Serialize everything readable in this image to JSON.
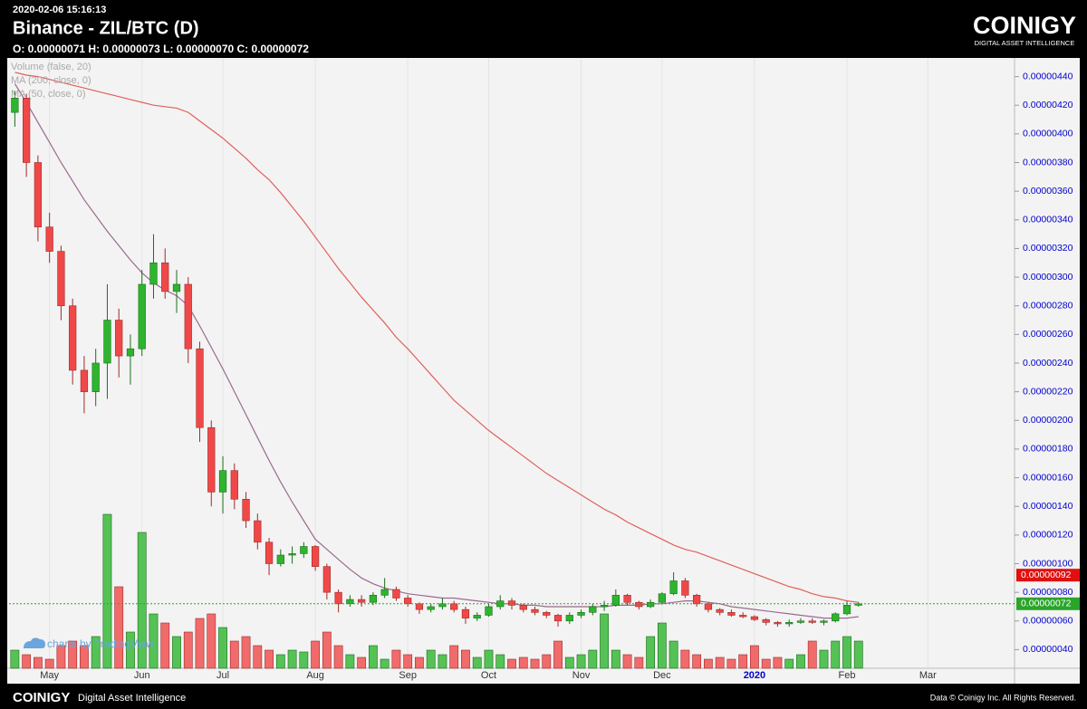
{
  "chart_data": {
    "type": "candlestick",
    "timestamp": "2020-02-06 15:16:13",
    "title": "Binance - ZIL/BTC (D)",
    "ohlc_text": "O: 0.00000071 H: 0.00000073 L: 0.00000070 C: 0.00000072",
    "watermark": "charts by TradingView",
    "up_color": "#2db52d",
    "down_color": "#f04848",
    "categories": [
      null,
      null,
      null,
      "May",
      null,
      null,
      null,
      null,
      null,
      null,
      null,
      "Jun",
      null,
      null,
      null,
      null,
      null,
      null,
      "Jul",
      null,
      null,
      null,
      null,
      null,
      null,
      null,
      "Aug",
      null,
      null,
      null,
      null,
      null,
      null,
      null,
      "Sep",
      null,
      null,
      null,
      null,
      null,
      null,
      "Oct",
      null,
      null,
      null,
      null,
      null,
      null,
      null,
      "Nov",
      null,
      null,
      null,
      null,
      null,
      null,
      "Dec",
      null,
      null,
      null,
      null,
      null,
      null,
      null,
      "2020",
      null,
      null,
      null,
      null,
      null,
      null,
      null,
      "Feb",
      null,
      null,
      null,
      null,
      null,
      null,
      "Mar",
      null,
      null,
      null,
      null,
      null,
      null,
      null
    ],
    "open": [
      4.15e-06,
      4.25e-06,
      3.8e-06,
      3.35e-06,
      3.18e-06,
      2.8e-06,
      2.35e-06,
      2.2e-06,
      2.4e-06,
      2.7e-06,
      2.45e-06,
      2.5e-06,
      2.95e-06,
      3.1e-06,
      2.9e-06,
      2.95e-06,
      2.5e-06,
      1.95e-06,
      1.5e-06,
      1.65e-06,
      1.45e-06,
      1.3e-06,
      1.15e-06,
      1e-06,
      1.06e-06,
      1.07e-06,
      1.12e-06,
      9.8e-07,
      8e-07,
      7.2e-07,
      7.5e-07,
      7.3e-07,
      7.8e-07,
      8.2e-07,
      7.6e-07,
      7.2e-07,
      6.8e-07,
      7e-07,
      7.2e-07,
      6.8e-07,
      6.2e-07,
      6.4e-07,
      7e-07,
      7.4e-07,
      7.1e-07,
      6.8e-07,
      6.6e-07,
      6.4e-07,
      6e-07,
      6.4e-07,
      6.6e-07,
      7e-07,
      7.1e-07,
      7.8e-07,
      7.3e-07,
      7e-07,
      7.3e-07,
      7.9e-07,
      8.8e-07,
      7.8e-07,
      7.2e-07,
      6.8e-07,
      6.6e-07,
      6.4e-07,
      6.3e-07,
      6.1e-07,
      5.9e-07,
      5.8e-07,
      5.9e-07,
      6e-07,
      5.9e-07,
      6e-07,
      6.5e-07,
      7.1e-07,
      null,
      null,
      null,
      null,
      null,
      null,
      null,
      null,
      null,
      null,
      null,
      null,
      null
    ],
    "high": [
      4.3e-06,
      4.28e-06,
      3.85e-06,
      3.45e-06,
      3.22e-06,
      2.85e-06,
      2.45e-06,
      2.5e-06,
      2.95e-06,
      2.78e-06,
      2.6e-06,
      3.05e-06,
      3.3e-06,
      3.2e-06,
      3.05e-06,
      3e-06,
      2.55e-06,
      2e-06,
      1.75e-06,
      1.7e-06,
      1.5e-06,
      1.35e-06,
      1.18e-06,
      1.1e-06,
      1.12e-06,
      1.15e-06,
      1.13e-06,
      1e-06,
      8.2e-07,
      7.8e-07,
      7.8e-07,
      8e-07,
      9e-07,
      8.4e-07,
      7.8e-07,
      7.3e-07,
      7.2e-07,
      7.6e-07,
      7.4e-07,
      7e-07,
      6.6e-07,
      7.2e-07,
      7.8e-07,
      7.6e-07,
      7.2e-07,
      7e-07,
      6.7e-07,
      6.5e-07,
      6.6e-07,
      6.8e-07,
      7.2e-07,
      7.4e-07,
      8.2e-07,
      7.9e-07,
      7.4e-07,
      7.5e-07,
      8e-07,
      9.4e-07,
      9e-07,
      7.9e-07,
      7.3e-07,
      6.9e-07,
      6.8e-07,
      6.6e-07,
      6.4e-07,
      6.2e-07,
      6e-07,
      6.1e-07,
      6.2e-07,
      6.2e-07,
      6.1e-07,
      6.6e-07,
      7.4e-07,
      7.3e-07,
      null,
      null,
      null,
      null,
      null,
      null,
      null,
      null,
      null,
      null,
      null,
      null,
      null
    ],
    "low": [
      4.05e-06,
      3.7e-06,
      3.25e-06,
      3.1e-06,
      2.7e-06,
      2.25e-06,
      2.05e-06,
      2.1e-06,
      2.15e-06,
      2.3e-06,
      2.25e-06,
      2.45e-06,
      2.85e-06,
      2.85e-06,
      2.75e-06,
      2.4e-06,
      1.85e-06,
      1.4e-06,
      1.35e-06,
      1.38e-06,
      1.25e-06,
      1.1e-06,
      9.2e-07,
      9.8e-07,
      1e-06,
      1.04e-06,
      9.5e-07,
      7.5e-07,
      6.6e-07,
      7e-07,
      7e-07,
      7.1e-07,
      7.6e-07,
      7.4e-07,
      7e-07,
      6.5e-07,
      6.6e-07,
      6.8e-07,
      6.6e-07,
      5.8e-07,
      6e-07,
      6.3e-07,
      6.8e-07,
      6.8e-07,
      6.6e-07,
      6.4e-07,
      6.2e-07,
      5.6e-07,
      5.8e-07,
      6.2e-07,
      6.4e-07,
      6.7e-07,
      7e-07,
      7.1e-07,
      6.8e-07,
      6.9e-07,
      7.2e-07,
      7.8e-07,
      7.6e-07,
      7e-07,
      6.6e-07,
      6.4e-07,
      6.3e-07,
      6.2e-07,
      6e-07,
      5.7e-07,
      5.6e-07,
      5.6e-07,
      5.8e-07,
      5.8e-07,
      5.7e-07,
      5.9e-07,
      6.4e-07,
      7e-07,
      null,
      null,
      null,
      null,
      null,
      null,
      null,
      null,
      null,
      null,
      null,
      null,
      null
    ],
    "close": [
      4.25e-06,
      3.8e-06,
      3.35e-06,
      3.18e-06,
      2.8e-06,
      2.35e-06,
      2.2e-06,
      2.4e-06,
      2.7e-06,
      2.45e-06,
      2.5e-06,
      2.95e-06,
      3.1e-06,
      2.9e-06,
      2.95e-06,
      2.5e-06,
      1.95e-06,
      1.5e-06,
      1.65e-06,
      1.45e-06,
      1.3e-06,
      1.15e-06,
      1e-06,
      1.06e-06,
      1.07e-06,
      1.12e-06,
      9.8e-07,
      8e-07,
      7.2e-07,
      7.5e-07,
      7.3e-07,
      7.8e-07,
      8.2e-07,
      7.6e-07,
      7.2e-07,
      6.8e-07,
      7e-07,
      7.2e-07,
      6.8e-07,
      6.2e-07,
      6.4e-07,
      7e-07,
      7.4e-07,
      7.1e-07,
      6.8e-07,
      6.6e-07,
      6.4e-07,
      6e-07,
      6.4e-07,
      6.6e-07,
      7e-07,
      7.1e-07,
      7.8e-07,
      7.3e-07,
      7e-07,
      7.3e-07,
      7.9e-07,
      8.8e-07,
      7.8e-07,
      7.2e-07,
      6.8e-07,
      6.6e-07,
      6.4e-07,
      6.3e-07,
      6.1e-07,
      5.9e-07,
      5.8e-07,
      5.9e-07,
      6e-07,
      5.9e-07,
      6e-07,
      6.5e-07,
      7.1e-07,
      7.2e-07,
      null,
      null,
      null,
      null,
      null,
      null,
      null,
      null,
      null,
      null,
      null,
      null,
      null
    ],
    "indicators": [
      {
        "name": "Volume (false, 20)",
        "values": [
          20,
          15,
          12,
          10,
          25,
          30,
          25,
          35,
          170,
          90,
          40,
          150,
          60,
          50,
          35,
          40,
          55,
          60,
          45,
          30,
          35,
          25,
          20,
          15,
          20,
          18,
          30,
          40,
          25,
          15,
          12,
          25,
          10,
          20,
          15,
          12,
          20,
          15,
          25,
          20,
          12,
          20,
          15,
          10,
          12,
          10,
          15,
          30,
          12,
          15,
          20,
          60,
          20,
          15,
          12,
          35,
          50,
          30,
          20,
          15,
          10,
          12,
          10,
          15,
          25,
          10,
          12,
          10,
          15,
          30,
          20,
          30,
          35,
          30,
          null,
          null,
          null,
          null,
          null,
          null,
          null,
          null,
          null,
          null,
          null,
          null,
          null
        ]
      },
      {
        "name": "MA (200, close, 0)",
        "color": "#e0605a",
        "values": [
          4.43e-06,
          4.41e-06,
          4.4e-06,
          4.38e-06,
          4.36e-06,
          4.34e-06,
          4.32e-06,
          4.3e-06,
          4.28e-06,
          4.26e-06,
          4.24e-06,
          4.22e-06,
          4.2e-06,
          4.19e-06,
          4.18e-06,
          4.15e-06,
          4.09e-06,
          4.03e-06,
          3.97e-06,
          3.9e-06,
          3.83e-06,
          3.75e-06,
          3.68e-06,
          3.59e-06,
          3.49e-06,
          3.39e-06,
          3.28e-06,
          3.17e-06,
          3.06e-06,
          2.96e-06,
          2.86e-06,
          2.77e-06,
          2.68e-06,
          2.58e-06,
          2.5e-06,
          2.41e-06,
          2.32e-06,
          2.23e-06,
          2.14e-06,
          2.07e-06,
          2e-06,
          1.93e-06,
          1.87e-06,
          1.81e-06,
          1.75e-06,
          1.69e-06,
          1.63e-06,
          1.58e-06,
          1.53e-06,
          1.48e-06,
          1.43e-06,
          1.38e-06,
          1.34e-06,
          1.29e-06,
          1.25e-06,
          1.21e-06,
          1.17e-06,
          1.13e-06,
          1.1e-06,
          1.08e-06,
          1.05e-06,
          1.02e-06,
          9.9e-07,
          9.6e-07,
          9.3e-07,
          9e-07,
          8.7e-07,
          8.4e-07,
          8.2e-07,
          7.9e-07,
          7.7e-07,
          7.6e-07,
          7.4e-07,
          7.3e-07,
          null,
          null,
          null,
          null,
          null,
          null,
          null,
          null,
          null,
          null,
          null,
          null,
          null
        ]
      },
      {
        "name": "MA (50, close, 0)",
        "color": "#9a6a8e",
        "values": [
          4.35e-06,
          4.22e-06,
          4.08e-06,
          3.94e-06,
          3.8e-06,
          3.67e-06,
          3.54e-06,
          3.43e-06,
          3.32e-06,
          3.22e-06,
          3.12e-06,
          3.03e-06,
          2.96e-06,
          2.91e-06,
          2.87e-06,
          2.8e-06,
          2.66e-06,
          2.51e-06,
          2.36e-06,
          2.2e-06,
          2.04e-06,
          1.88e-06,
          1.72e-06,
          1.57e-06,
          1.43e-06,
          1.3e-06,
          1.17e-06,
          1.1e-06,
          1.03e-06,
          9.6e-07,
          9e-07,
          8.6e-07,
          8.3e-07,
          8.1e-07,
          7.9e-07,
          7.8e-07,
          7.7e-07,
          7.6e-07,
          7.6e-07,
          7.5e-07,
          7.4e-07,
          7.3e-07,
          7.2e-07,
          7.2e-07,
          7.1e-07,
          7.1e-07,
          7e-07,
          7e-07,
          7e-07,
          7e-07,
          7e-07,
          7e-07,
          7.1e-07,
          7.1e-07,
          7.1e-07,
          7.2e-07,
          7.2e-07,
          7.3e-07,
          7.4e-07,
          7.4e-07,
          7.3e-07,
          7.2e-07,
          7e-07,
          6.9e-07,
          6.8e-07,
          6.7e-07,
          6.6e-07,
          6.5e-07,
          6.4e-07,
          6.3e-07,
          6.2e-07,
          6.2e-07,
          6.2e-07,
          6.3e-07,
          null,
          null,
          null,
          null,
          null,
          null,
          null,
          null,
          null,
          null,
          null,
          null,
          null
        ]
      }
    ],
    "ylim": [
      2.7e-07,
      4.53e-06
    ],
    "yticks": [
      {
        "value": 4e-07,
        "label": "0.00000040"
      },
      {
        "value": 6e-07,
        "label": "0.00000060"
      },
      {
        "value": 8e-07,
        "label": "0.00000080"
      },
      {
        "value": 1e-06,
        "label": "0.00000100"
      },
      {
        "value": 1.2e-06,
        "label": "0.00000120"
      },
      {
        "value": 1.4e-06,
        "label": "0.00000140"
      },
      {
        "value": 1.6e-06,
        "label": "0.00000160"
      },
      {
        "value": 1.8e-06,
        "label": "0.00000180"
      },
      {
        "value": 2e-06,
        "label": "0.00000200"
      },
      {
        "value": 2.2e-06,
        "label": "0.00000220"
      },
      {
        "value": 2.4e-06,
        "label": "0.00000240"
      },
      {
        "value": 2.6e-06,
        "label": "0.00000260"
      },
      {
        "value": 2.8e-06,
        "label": "0.00000280"
      },
      {
        "value": 3e-06,
        "label": "0.00000300"
      },
      {
        "value": 3.2e-06,
        "label": "0.00000320"
      },
      {
        "value": 3.4e-06,
        "label": "0.00000340"
      },
      {
        "value": 3.6e-06,
        "label": "0.00000360"
      },
      {
        "value": 3.8e-06,
        "label": "0.00000380"
      },
      {
        "value": 4e-06,
        "label": "0.00000400"
      },
      {
        "value": 4.2e-06,
        "label": "0.00000420"
      },
      {
        "value": 4.4e-06,
        "label": "0.00000440"
      }
    ],
    "price_markers": [
      {
        "value": 9.2e-07,
        "label": "0.00000092",
        "color": "#e01010"
      },
      {
        "value": 7.2e-07,
        "label": "0.00000072",
        "color": "#2aa52a"
      }
    ]
  },
  "brand": {
    "header_logo": "COINIGY",
    "header_tagline": "DIGITAL ASSET INTELLIGENCE",
    "footer_logo": "COINIGY",
    "footer_tagline": "Digital Asset Intelligence",
    "copyright": "Data © Coinigy Inc.  All Rights Reserved."
  }
}
